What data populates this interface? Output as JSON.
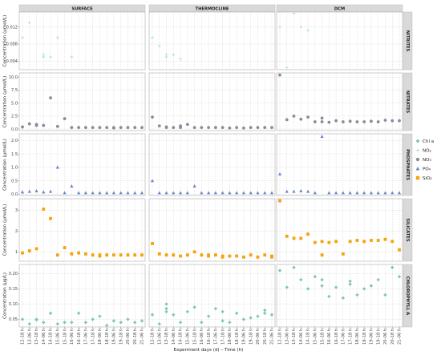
{
  "chart_data": {
    "type": "scatter",
    "columns": [
      "SURFACE",
      "THERMOCLINE",
      "DCM"
    ],
    "xlabel": "Experiment days (d) – Time (h)",
    "x_categories": [
      "12–18 h",
      "13–06 h",
      "13–18 h",
      "14–06 h",
      "14–18 h",
      "15–06 h",
      "15–18 h",
      "16–06 h",
      "16–18 h",
      "17–06 h",
      "17–18 h",
      "18–06 h",
      "18–18 h",
      "19–06 h",
      "19–18 h",
      "20–06 h",
      "20–18 h",
      "21–06 h"
    ],
    "legend": [
      {
        "label": "Chl a",
        "color": "#7fc8a9",
        "shape": "diamond"
      },
      {
        "label": "NO₂",
        "color": "#a8e4dc",
        "shape": "plus"
      },
      {
        "label": "NO₃",
        "color": "#8a8a9a",
        "shape": "circle"
      },
      {
        "label": "PO₄",
        "color": "#6a88c8",
        "shape": "triangle"
      },
      {
        "label": "SiO₂",
        "color": "#f5a30a",
        "shape": "square"
      }
    ],
    "rows": [
      {
        "name": "NITRITES",
        "ylabel": "Concentration (µmol/L)",
        "ylim": [
          0.002,
          0.0155
        ],
        "yticks": [
          0.004,
          0.008,
          0.012
        ],
        "tick_labels": [
          "0.004",
          "0.008",
          "0.012"
        ],
        "color": "#a8e4dc",
        "shape": "plus",
        "panels": [
          {
            "x": [
              0,
              1,
              3,
              3,
              4,
              5,
              7
            ],
            "y": [
              0.0095,
              0.013,
              0.0055,
              0.005,
              0.005,
              0.0095,
              0.005
            ]
          },
          {
            "x": [
              0,
              1,
              2,
              2,
              3,
              4
            ],
            "y": [
              0.0095,
              0.0075,
              0.0055,
              0.005,
              0.0055,
              0.0045
            ]
          },
          {
            "x": [
              0,
              1,
              2,
              3,
              4
            ],
            "y": [
              0.012,
              0.0025,
              0.0152,
              0.012,
              0.0112
            ]
          }
        ]
      },
      {
        "name": "NITRATES",
        "ylabel": "Concentration (µmol/L)",
        "ylim": [
          -0.3,
          10.8
        ],
        "yticks": [
          0.0,
          2.5,
          5.0,
          7.5,
          10.0
        ],
        "tick_labels": [
          "0.0",
          "2.5",
          "5.0",
          "7.5",
          "10.0"
        ],
        "color": "#8a8a9a",
        "shape": "circle",
        "panels": [
          {
            "x": [
              0,
              1,
              2,
              2,
              3,
              4,
              5,
              6,
              7,
              8,
              9,
              10,
              11,
              12,
              13,
              13,
              14,
              15,
              16,
              17
            ],
            "y": [
              0.4,
              1.0,
              0.9,
              0.7,
              0.7,
              6.0,
              0.5,
              2.0,
              0.3,
              0.3,
              0.3,
              0.3,
              0.3,
              0.3,
              0.3,
              0.2,
              0.3,
              0.3,
              0.3,
              0.3
            ]
          },
          {
            "x": [
              0,
              1,
              2,
              2,
              3,
              4,
              4,
              5,
              6,
              7,
              8,
              9,
              10,
              11,
              12,
              13,
              14,
              15,
              16,
              17
            ],
            "y": [
              2.3,
              0.6,
              0.4,
              0.3,
              0.3,
              0.3,
              0.6,
              0.9,
              0.3,
              0.3,
              0.3,
              0.3,
              0.3,
              0.2,
              0.3,
              0.2,
              0.3,
              0.3,
              0.3,
              0.3
            ]
          },
          {
            "x": [
              0,
              1,
              2,
              3,
              4,
              5,
              6,
              6,
              7,
              8,
              9,
              10,
              11,
              12,
              13,
              14,
              15,
              16,
              17
            ],
            "y": [
              10.4,
              1.8,
              2.5,
              1.9,
              2.3,
              1.4,
              2.1,
              1.4,
              1.3,
              1.6,
              1.4,
              1.5,
              1.4,
              1.4,
              1.5,
              1.4,
              1.7,
              1.6,
              1.6
            ]
          }
        ]
      },
      {
        "name": "PHOSPHATES",
        "ylabel": "Concentration (µmol/L)",
        "ylim": [
          -0.05,
          2.25
        ],
        "yticks": [
          0.0,
          0.5,
          1.0,
          1.5,
          2.0
        ],
        "tick_labels": [
          "0.0",
          "0.5",
          "1.0",
          "1.5",
          "2.0"
        ],
        "color": "#6a88c8",
        "shape": "triangle",
        "panels": [
          {
            "x": [
              0,
              1,
              2,
              3,
              4,
              5,
              6,
              7,
              8,
              9,
              10,
              11,
              12,
              13,
              14,
              15,
              16,
              17
            ],
            "y": [
              0.08,
              0.1,
              0.12,
              0.08,
              0.1,
              1.0,
              0.05,
              0.3,
              0.05,
              0.05,
              0.05,
              0.05,
              0.05,
              0.05,
              0.05,
              0.05,
              0.05,
              0.05
            ]
          },
          {
            "x": [
              0,
              1,
              2,
              3,
              4,
              5,
              6,
              7,
              8,
              9,
              10,
              11,
              12,
              13,
              14,
              15,
              16,
              17
            ],
            "y": [
              0.5,
              0.05,
              0.05,
              0.05,
              0.05,
              0.05,
              0.3,
              0.05,
              0.05,
              0.05,
              0.05,
              0.05,
              0.05,
              0.05,
              0.05,
              0.05,
              0.05,
              0.05
            ]
          },
          {
            "x": [
              0,
              1,
              2,
              3,
              4,
              5,
              6,
              7,
              8,
              9,
              10,
              11,
              12,
              13,
              14,
              15,
              16,
              17
            ],
            "y": [
              0.75,
              0.1,
              0.1,
              0.12,
              0.1,
              0.05,
              2.15,
              0.05,
              0.05,
              0.05,
              0.05,
              0.05,
              0.05,
              0.05,
              0.05,
              0.05,
              0.05,
              0.05
            ]
          }
        ]
      },
      {
        "name": "SILICATES",
        "ylabel": "Concentration (µmol/L)",
        "ylim": [
          0.55,
          3.55
        ],
        "yticks": [
          1,
          2,
          3
        ],
        "tick_labels": [
          "1",
          "2",
          "3"
        ],
        "color": "#f5a30a",
        "shape": "square",
        "panels": [
          {
            "x": [
              0,
              1,
              2,
              3,
              4,
              5,
              6,
              7,
              8,
              9,
              10,
              11,
              11,
              12,
              13,
              14,
              15,
              16,
              17
            ],
            "y": [
              0.95,
              1.05,
              1.15,
              3.05,
              2.6,
              0.85,
              1.2,
              0.9,
              0.95,
              0.9,
              0.85,
              0.85,
              0.8,
              0.85,
              0.85,
              0.85,
              0.85,
              0.85,
              0.85
            ]
          },
          {
            "x": [
              0,
              1,
              2,
              3,
              4,
              5,
              6,
              7,
              8,
              8,
              9,
              10,
              10,
              11,
              12,
              13,
              14,
              15,
              16,
              17,
              17
            ],
            "y": [
              1.4,
              0.9,
              0.85,
              0.85,
              0.8,
              0.85,
              1.0,
              0.85,
              0.85,
              0.8,
              0.85,
              0.8,
              0.75,
              0.8,
              0.8,
              0.75,
              0.85,
              0.75,
              0.85,
              0.8,
              0.75
            ]
          },
          {
            "x": [
              0,
              1,
              2,
              3,
              4,
              5,
              6,
              6,
              7,
              8,
              9,
              10,
              11,
              12,
              13,
              14,
              15,
              16,
              17
            ],
            "y": [
              3.45,
              1.75,
              1.65,
              1.65,
              1.85,
              1.45,
              1.5,
              0.85,
              1.45,
              1.5,
              0.9,
              1.5,
              1.55,
              1.5,
              1.55,
              1.55,
              1.6,
              1.5,
              1.1
            ]
          }
        ]
      },
      {
        "name": "CHLOROPHYLL A",
        "ylabel": "Concentration (µg/L)",
        "ylim": [
          0.025,
          0.23
        ],
        "yticks": [
          0.05,
          0.1,
          0.15,
          0.2
        ],
        "tick_labels": [
          "0.05",
          "0.10",
          "0.15",
          "0.20"
        ],
        "color": "#7fc8a9",
        "shape": "diamond",
        "panels": [
          {
            "x": [
              0,
              1,
              2,
              2,
              3,
              4,
              5,
              6,
              7,
              8,
              9,
              10,
              11,
              12,
              13,
              14,
              15,
              16,
              17
            ],
            "y": [
              0.05,
              0.035,
              0.05,
              0.048,
              0.04,
              0.07,
              0.035,
              0.04,
              0.04,
              0.07,
              0.04,
              0.05,
              0.06,
              0.03,
              0.045,
              0.04,
              0.05,
              0.04,
              0.045
            ]
          },
          {
            "x": [
              0,
              1,
              2,
              2,
              2,
              3,
              4,
              5,
              6,
              7,
              8,
              9,
              10,
              10,
              11,
              12,
              13,
              14,
              15,
              16,
              16,
              17
            ],
            "y": [
              0.065,
              0.035,
              0.1,
              0.085,
              0.075,
              0.065,
              0.04,
              0.075,
              0.09,
              0.04,
              0.06,
              0.085,
              0.075,
              0.045,
              0.04,
              0.07,
              0.05,
              0.055,
              0.06,
              0.07,
              0.08,
              0.065
            ]
          },
          {
            "x": [
              0,
              1,
              2,
              3,
              4,
              5,
              6,
              6,
              7,
              8,
              9,
              10,
              10,
              11,
              12,
              13,
              14,
              15,
              16,
              17
            ],
            "y": [
              0.21,
              0.155,
              0.22,
              0.18,
              0.15,
              0.19,
              0.18,
              0.16,
              0.125,
              0.155,
              0.12,
              0.165,
              0.175,
              0.13,
              0.15,
              0.16,
              0.18,
              0.13,
              0.22,
              0.19
            ]
          }
        ]
      }
    ]
  }
}
